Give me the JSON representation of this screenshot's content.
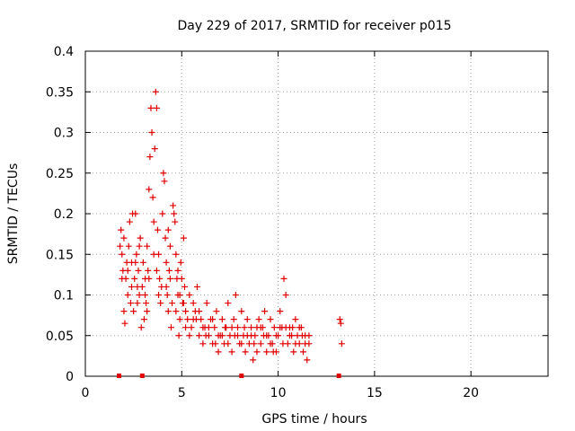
{
  "chart_data": {
    "type": "scatter",
    "title": "Day 229 of 2017, SRMTID for receiver p015",
    "xlabel": "GPS time / hours",
    "ylabel": "SRMTID / TECUs",
    "xlim": [
      0,
      24
    ],
    "ylim": [
      0,
      0.4
    ],
    "x_ticks": [
      0,
      5,
      10,
      15,
      20
    ],
    "y_ticks": [
      0,
      0.05,
      0.1,
      0.15,
      0.2,
      0.25,
      0.3,
      0.35,
      0.4
    ],
    "x_tick_labels": [
      "0",
      "5",
      "10",
      "15",
      "20"
    ],
    "y_tick_labels": [
      "0",
      "0.05",
      "0.1",
      "0.15",
      "0.2",
      "0.25",
      "0.3",
      "0.35",
      "0.4"
    ],
    "grid": true,
    "marker_color": "#e00000",
    "series": [
      {
        "name": "SRMTID",
        "marker": "plus",
        "points": [
          [
            1.8,
            0.16
          ],
          [
            1.85,
            0.18
          ],
          [
            1.9,
            0.15
          ],
          [
            1.95,
            0.13
          ],
          [
            2.0,
            0.17
          ],
          [
            2.05,
            0.065
          ],
          [
            2.1,
            0.12
          ],
          [
            2.15,
            0.14
          ],
          [
            2.2,
            0.1
          ],
          [
            2.25,
            0.16
          ],
          [
            2.3,
            0.19
          ],
          [
            2.35,
            0.09
          ],
          [
            2.4,
            0.11
          ],
          [
            2.45,
            0.2
          ],
          [
            2.5,
            0.08
          ],
          [
            2.55,
            0.12
          ],
          [
            2.6,
            0.2
          ],
          [
            2.65,
            0.15
          ],
          [
            2.7,
            0.09
          ],
          [
            2.75,
            0.13
          ],
          [
            2.8,
            0.1
          ],
          [
            2.85,
            0.17
          ],
          [
            2.9,
            0.06
          ],
          [
            2.95,
            0.11
          ],
          [
            3.0,
            0.14
          ],
          [
            3.05,
            0.07
          ],
          [
            3.1,
            0.12
          ],
          [
            3.15,
            0.09
          ],
          [
            3.2,
            0.16
          ],
          [
            3.25,
            0.13
          ],
          [
            3.3,
            0.23
          ],
          [
            3.35,
            0.27
          ],
          [
            3.4,
            0.33
          ],
          [
            3.45,
            0.3
          ],
          [
            3.5,
            0.22
          ],
          [
            3.55,
            0.19
          ],
          [
            3.6,
            0.28
          ],
          [
            3.65,
            0.35
          ],
          [
            3.7,
            0.33
          ],
          [
            3.75,
            0.18
          ],
          [
            3.8,
            0.15
          ],
          [
            3.85,
            0.12
          ],
          [
            3.9,
            0.09
          ],
          [
            3.95,
            0.11
          ],
          [
            4.0,
            0.2
          ],
          [
            4.05,
            0.25
          ],
          [
            4.1,
            0.24
          ],
          [
            4.15,
            0.17
          ],
          [
            4.2,
            0.14
          ],
          [
            4.25,
            0.1
          ],
          [
            4.3,
            0.08
          ],
          [
            4.35,
            0.13
          ],
          [
            4.4,
            0.16
          ],
          [
            4.45,
            0.06
          ],
          [
            4.5,
            0.09
          ],
          [
            4.55,
            0.21
          ],
          [
            4.6,
            0.2
          ],
          [
            4.65,
            0.19
          ],
          [
            4.7,
            0.15
          ],
          [
            4.75,
            0.12
          ],
          [
            4.8,
            0.1
          ],
          [
            4.85,
            0.05
          ],
          [
            4.9,
            0.07
          ],
          [
            4.95,
            0.14
          ],
          [
            5.0,
            0.12
          ],
          [
            5.05,
            0.09
          ],
          [
            5.1,
            0.17
          ],
          [
            5.15,
            0.11
          ],
          [
            5.2,
            0.08
          ],
          [
            5.3,
            0.07
          ],
          [
            5.4,
            0.1
          ],
          [
            5.5,
            0.06
          ],
          [
            5.6,
            0.09
          ],
          [
            5.7,
            0.08
          ],
          [
            5.8,
            0.11
          ],
          [
            5.9,
            0.05
          ],
          [
            6.0,
            0.07
          ],
          [
            6.1,
            0.04
          ],
          [
            6.2,
            0.06
          ],
          [
            6.3,
            0.09
          ],
          [
            6.4,
            0.05
          ],
          [
            6.5,
            0.07
          ],
          [
            6.6,
            0.04
          ],
          [
            6.7,
            0.06
          ],
          [
            6.8,
            0.08
          ],
          [
            6.9,
            0.03
          ],
          [
            7.0,
            0.05
          ],
          [
            7.1,
            0.07
          ],
          [
            7.2,
            0.04
          ],
          [
            7.3,
            0.06
          ],
          [
            7.4,
            0.09
          ],
          [
            7.5,
            0.05
          ],
          [
            7.6,
            0.03
          ],
          [
            7.7,
            0.07
          ],
          [
            7.8,
            0.1
          ],
          [
            7.9,
            0.06
          ],
          [
            8.0,
            0.04
          ],
          [
            8.1,
            0.08
          ],
          [
            8.2,
            0.05
          ],
          [
            8.3,
            0.03
          ],
          [
            8.4,
            0.07
          ],
          [
            8.5,
            0.04
          ],
          [
            8.6,
            0.06
          ],
          [
            8.7,
            0.02
          ],
          [
            8.8,
            0.05
          ],
          [
            8.9,
            0.03
          ],
          [
            9.0,
            0.07
          ],
          [
            9.1,
            0.04
          ],
          [
            9.2,
            0.06
          ],
          [
            9.3,
            0.08
          ],
          [
            9.4,
            0.03
          ],
          [
            9.5,
            0.05
          ],
          [
            9.6,
            0.07
          ],
          [
            9.7,
            0.04
          ],
          [
            9.8,
            0.06
          ],
          [
            9.9,
            0.03
          ],
          [
            10.0,
            0.05
          ],
          [
            10.1,
            0.08
          ],
          [
            10.2,
            0.06
          ],
          [
            10.3,
            0.12
          ],
          [
            10.4,
            0.1
          ],
          [
            10.5,
            0.04
          ],
          [
            10.6,
            0.06
          ],
          [
            10.7,
            0.05
          ],
          [
            10.8,
            0.03
          ],
          [
            10.9,
            0.07
          ],
          [
            11.0,
            0.05
          ],
          [
            11.1,
            0.04
          ],
          [
            11.2,
            0.06
          ],
          [
            11.3,
            0.03
          ],
          [
            11.4,
            0.05
          ],
          [
            11.5,
            0.02
          ],
          [
            11.6,
            0.04
          ],
          [
            13.2,
            0.07
          ],
          [
            13.25,
            0.065
          ],
          [
            13.3,
            0.04
          ],
          [
            2.0,
            0.08
          ],
          [
            2.6,
            0.14
          ],
          [
            3.1,
            0.1
          ],
          [
            3.55,
            0.15
          ],
          [
            4.2,
            0.11
          ],
          [
            4.7,
            0.08
          ],
          [
            5.2,
            0.06
          ],
          [
            5.75,
            0.07
          ],
          [
            6.25,
            0.05
          ],
          [
            6.75,
            0.04
          ],
          [
            7.25,
            0.06
          ],
          [
            7.75,
            0.05
          ],
          [
            8.25,
            0.06
          ],
          [
            8.75,
            0.04
          ],
          [
            9.25,
            0.05
          ],
          [
            9.75,
            0.03
          ],
          [
            10.25,
            0.04
          ],
          [
            10.75,
            0.06
          ],
          [
            11.25,
            0.05
          ],
          [
            1.9,
            0.12
          ],
          [
            2.2,
            0.13
          ],
          [
            2.7,
            0.11
          ],
          [
            3.3,
            0.12
          ],
          [
            3.8,
            0.1
          ],
          [
            4.4,
            0.12
          ],
          [
            4.9,
            0.1
          ],
          [
            5.4,
            0.05
          ],
          [
            5.9,
            0.08
          ],
          [
            6.4,
            0.06
          ],
          [
            6.9,
            0.05
          ],
          [
            7.4,
            0.04
          ],
          [
            7.9,
            0.05
          ],
          [
            8.4,
            0.05
          ],
          [
            8.9,
            0.06
          ],
          [
            9.4,
            0.05
          ],
          [
            9.9,
            0.05
          ],
          [
            10.4,
            0.06
          ],
          [
            10.9,
            0.04
          ],
          [
            11.4,
            0.04
          ],
          [
            2.4,
            0.14
          ],
          [
            2.8,
            0.16
          ],
          [
            3.2,
            0.08
          ],
          [
            3.7,
            0.13
          ],
          [
            4.3,
            0.18
          ],
          [
            4.8,
            0.13
          ],
          [
            5.1,
            0.09
          ],
          [
            5.6,
            0.07
          ],
          [
            6.1,
            0.06
          ],
          [
            6.6,
            0.07
          ],
          [
            7.1,
            0.05
          ],
          [
            7.6,
            0.06
          ],
          [
            8.1,
            0.04
          ],
          [
            8.6,
            0.05
          ],
          [
            9.1,
            0.06
          ],
          [
            9.6,
            0.04
          ],
          [
            10.1,
            0.06
          ],
          [
            10.6,
            0.05
          ],
          [
            11.1,
            0.06
          ],
          [
            11.6,
            0.05
          ]
        ]
      }
    ],
    "data_gap_markers_x": [
      1.75,
      2.95,
      8.1,
      13.15
    ]
  }
}
